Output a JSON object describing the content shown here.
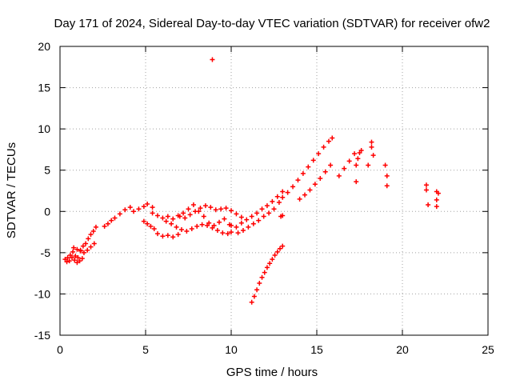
{
  "chart_data": {
    "type": "scatter",
    "title": "Day 171 of 2024, Sidereal Day-to-day VTEC variation (SDTVAR) for receiver ofw2",
    "xlabel": "GPS time / hours",
    "ylabel": "SDTVAR / TECUs",
    "xlim": [
      0,
      25
    ],
    "ylim": [
      -15,
      20
    ],
    "xticks": [
      0,
      5,
      10,
      15,
      20,
      25
    ],
    "yticks": [
      -15,
      -10,
      -5,
      0,
      5,
      10,
      15,
      20
    ],
    "grid": true,
    "marker": "+",
    "color": "#ff0000",
    "series": [
      {
        "name": "SDTVAR",
        "x": [
          0.3,
          0.45,
          0.6,
          0.75,
          0.9,
          1.05,
          1.2,
          1.35,
          1.5,
          1.65,
          1.8,
          1.95,
          2.1,
          0.4,
          0.55,
          0.7,
          0.85,
          1.0,
          1.15,
          1.3,
          0.8,
          1.0,
          1.2,
          1.4,
          1.6,
          1.8,
          2.0,
          2.6,
          2.8,
          3.0,
          3.2,
          3.5,
          3.8,
          4.1,
          4.3,
          4.6,
          4.9,
          5.1,
          5.4,
          4.9,
          5.1,
          5.3,
          5.5,
          5.4,
          5.7,
          6.0,
          6.3,
          6.6,
          6.9,
          7.2,
          7.5,
          7.8,
          8.1,
          8.4,
          8.7,
          9.0,
          9.3,
          9.6,
          9.9,
          6.2,
          6.5,
          6.8,
          7.1,
          7.4,
          7.7,
          8.0,
          8.3,
          8.6,
          8.9,
          9.2,
          9.5,
          9.8,
          10.0,
          7.0,
          7.3,
          7.6,
          7.9,
          8.2,
          8.5,
          8.8,
          9.1,
          9.4,
          9.7,
          10.0,
          10.3,
          10.6,
          5.7,
          6.0,
          6.3,
          6.6,
          6.9,
          10.0,
          10.3,
          10.6,
          10.9,
          11.2,
          11.5,
          11.8,
          12.1,
          12.4,
          12.7,
          13.0,
          10.4,
          10.7,
          11.0,
          11.3,
          11.6,
          11.9,
          12.2,
          12.5,
          11.2,
          11.35,
          11.5,
          11.65,
          11.8,
          11.95,
          12.1,
          12.25,
          12.4,
          12.55,
          12.7,
          12.85,
          13.0,
          12.9,
          13.0,
          12.8,
          13.0,
          13.3,
          13.6,
          13.9,
          14.2,
          14.5,
          14.8,
          15.1,
          15.4,
          15.7,
          15.9,
          14.0,
          14.3,
          14.6,
          14.9,
          15.2,
          15.5,
          15.8,
          16.3,
          16.6,
          16.9,
          17.2,
          17.3,
          17.3,
          17.4,
          17.5,
          17.6,
          18.0,
          18.2,
          18.3,
          18.2,
          19.0,
          19.1,
          19.1,
          21.4,
          21.4,
          21.5,
          22.0,
          22.0,
          22.0,
          22.1,
          8.9
        ],
        "y": [
          -5.8,
          -5.6,
          -5.3,
          -4.9,
          -5.4,
          -5.6,
          -4.7,
          -4.2,
          -3.9,
          -3.3,
          -2.8,
          -2.4,
          -1.9,
          -6.1,
          -6.0,
          -5.6,
          -5.9,
          -6.2,
          -6.0,
          -5.7,
          -4.4,
          -4.6,
          -4.8,
          -5.0,
          -4.7,
          -4.3,
          -3.9,
          -1.8,
          -1.5,
          -1.1,
          -0.8,
          -0.3,
          0.2,
          0.5,
          0.0,
          0.3,
          0.6,
          0.9,
          0.5,
          -1.2,
          -1.5,
          -1.8,
          -2.1,
          -0.2,
          -0.5,
          -0.8,
          -0.6,
          -0.9,
          -0.5,
          -0.2,
          0.3,
          0.8,
          0.0,
          -0.6,
          -1.4,
          -1.7,
          -1.3,
          -0.9,
          -1.6,
          -1.2,
          -1.5,
          -1.9,
          -2.2,
          -2.4,
          -2.1,
          -1.8,
          -1.6,
          -1.7,
          -2.0,
          -2.3,
          -2.6,
          -2.7,
          -2.5,
          -0.6,
          -0.8,
          -0.4,
          0.0,
          0.4,
          0.7,
          0.5,
          0.2,
          0.3,
          0.4,
          0.1,
          -0.3,
          -0.7,
          -2.7,
          -3.0,
          -2.9,
          -3.1,
          -2.8,
          -1.7,
          -1.9,
          -1.4,
          -1.0,
          -0.6,
          -0.2,
          0.3,
          0.7,
          1.2,
          1.8,
          2.4,
          -2.6,
          -2.3,
          -1.9,
          -1.5,
          -1.1,
          -0.6,
          -0.2,
          0.3,
          -11.0,
          -10.3,
          -9.5,
          -8.7,
          -8.0,
          -7.4,
          -6.8,
          -6.3,
          -5.8,
          -5.3,
          -4.9,
          -4.5,
          -4.2,
          -0.6,
          -0.5,
          1.1,
          1.7,
          2.3,
          3.0,
          3.8,
          4.6,
          5.4,
          6.2,
          7.0,
          7.8,
          8.5,
          8.9,
          1.5,
          2.0,
          2.6,
          3.3,
          4.0,
          4.8,
          5.6,
          4.3,
          5.2,
          6.1,
          7.0,
          3.6,
          5.6,
          6.4,
          7.1,
          7.4,
          5.6,
          7.8,
          6.8,
          8.4,
          5.6,
          4.3,
          3.1,
          3.2,
          2.6,
          0.8,
          2.4,
          1.4,
          0.6,
          2.2,
          18.4
        ]
      }
    ]
  }
}
